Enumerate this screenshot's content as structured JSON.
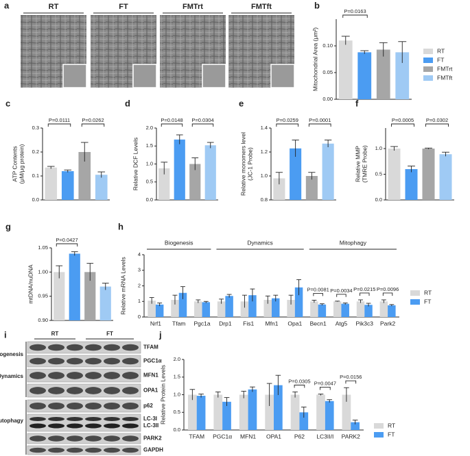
{
  "chart_data": [
    {
      "panel": "b",
      "type": "bar",
      "ylabel": [
        "Mitochondrial Area (μm²)"
      ],
      "ylim": [
        0,
        0.15
      ],
      "yticks": [
        {
          "value": 0,
          "label": "0.00"
        },
        0.05,
        {
          "value": 0.1,
          "label": "0.10"
        }
      ],
      "values": [
        0.11,
        0.088,
        0.093,
        0.088
      ],
      "errors": [
        0.008,
        0.003,
        0.013,
        0.02
      ],
      "colors": [
        "#d9d9d9",
        "#4b9cf2",
        "#a6a6a6",
        "#9fcaf4"
      ],
      "pvalues": [
        "P=0.0163",
        null
      ],
      "legend": [
        "RT",
        "FT",
        "FMTrt",
        "FMTft"
      ]
    },
    {
      "panel": "c",
      "type": "bar",
      "ylabel": [
        "ATP Contents",
        "(μM/μg protein)"
      ],
      "ylim": [
        0,
        0.3
      ],
      "yticks": [
        {
          "value": 0,
          "label": "0.0"
        },
        0.1,
        0.2,
        0.3
      ],
      "values": [
        0.135,
        0.12,
        0.2,
        0.105
      ],
      "errors": [
        0.005,
        0.005,
        0.04,
        0.012
      ],
      "colors": [
        "#d9d9d9",
        "#4b9cf2",
        "#a6a6a6",
        "#9fcaf4"
      ],
      "pvalues": [
        "P=0.0111",
        "P=0.0262"
      ]
    },
    {
      "panel": "d",
      "type": "bar",
      "ylabel": [
        "Relative DCF Levels"
      ],
      "ylim": [
        0,
        2
      ],
      "yticks": [
        {
          "value": 0,
          "label": "0.0"
        },
        0.5,
        {
          "value": 1,
          "label": "1.0"
        },
        1.5,
        {
          "value": 2,
          "label": "2.0"
        }
      ],
      "values": [
        0.88,
        1.68,
        1.0,
        1.52
      ],
      "errors": [
        0.17,
        0.13,
        0.17,
        0.08
      ],
      "colors": [
        "#d9d9d9",
        "#4b9cf2",
        "#a6a6a6",
        "#9fcaf4"
      ],
      "pvalues": [
        "P=0.0148",
        "P=0.0304"
      ]
    },
    {
      "panel": "e",
      "type": "bar",
      "ylabel": [
        "Relative monomers level",
        "(JC-1 Probe)"
      ],
      "ylim": [
        0.8,
        1.4
      ],
      "yticks": [
        0.8,
        {
          "value": 1,
          "label": "1.0"
        },
        1.2,
        1.4
      ],
      "values": [
        0.98,
        1.23,
        1.0,
        1.27
      ],
      "errors": [
        0.05,
        0.07,
        0.03,
        0.03
      ],
      "colors": [
        "#d9d9d9",
        "#4b9cf2",
        "#a6a6a6",
        "#9fcaf4"
      ],
      "pvalues": [
        "P=0.0259",
        "P=0.0001"
      ]
    },
    {
      "panel": "f",
      "type": "bar",
      "ylabel": [
        "Relative MMP",
        "(TMRE Probe)"
      ],
      "ylim": [
        0,
        1.4
      ],
      "yticks": [
        {
          "value": 0,
          "label": "0.0"
        },
        0.5,
        {
          "value": 1,
          "label": "1.0"
        }
      ],
      "values": [
        1.0,
        0.6,
        1.0,
        0.89
      ],
      "errors": [
        0.04,
        0.06,
        0.01,
        0.04
      ],
      "colors": [
        "#d9d9d9",
        "#4b9cf2",
        "#a6a6a6",
        "#9fcaf4"
      ],
      "pvalues": [
        "P=0.0005",
        "P=0.0302"
      ]
    },
    {
      "panel": "g",
      "type": "bar",
      "ylabel": [
        "mtDNA/nuDNA"
      ],
      "ylim": [
        0.9,
        1.05
      ],
      "yticks": [
        {
          "value": 0.9,
          "label": "0.90"
        },
        0.95,
        {
          "value": 1,
          "label": "1.00"
        },
        1.05
      ],
      "values": [
        1.0,
        1.038,
        1.0,
        0.97
      ],
      "errors": [
        0.013,
        0.004,
        0.018,
        0.007
      ],
      "colors": [
        "#d9d9d9",
        "#4b9cf2",
        "#a6a6a6",
        "#9fcaf4"
      ],
      "pvalues": [
        "P=0.0427",
        null
      ]
    },
    {
      "panel": "h",
      "type": "grouped",
      "ylabel": [
        "Relative mRNA Levels"
      ],
      "ylim": [
        0,
        4
      ],
      "yticks": [
        0,
        1,
        2,
        3,
        4
      ],
      "groups": [
        {
          "label": "Biogenesis",
          "categories": [
            "Nrf1",
            "Tfam",
            "Pgc1a"
          ]
        },
        {
          "label": "Dynamics",
          "categories": [
            "Drp1",
            "Fis1",
            "Mfn1",
            "Opa1"
          ]
        },
        {
          "label": "Mitophagy",
          "categories": [
            "Becn1",
            "Atg5",
            "Pik3c3",
            "Park2"
          ]
        }
      ],
      "series": [
        {
          "name": "RT",
          "color": "#d9d9d9",
          "values": [
            1.05,
            1.1,
            1.0,
            1.0,
            1.0,
            1.1,
            1.1,
            1.0,
            1.0,
            1.0,
            1.0
          ],
          "errors": [
            0.2,
            0.3,
            0.1,
            0.15,
            0.4,
            0.25,
            0.3,
            0.08,
            0.02,
            0.1,
            0.1
          ]
        },
        {
          "name": "FT",
          "color": "#4b9cf2",
          "values": [
            0.8,
            1.55,
            0.95,
            1.35,
            1.4,
            1.2,
            1.9,
            0.8,
            0.85,
            0.78,
            0.75
          ],
          "errors": [
            0.1,
            0.4,
            0.05,
            0.1,
            0.4,
            0.2,
            0.5,
            0.05,
            0.05,
            0.1,
            0.05
          ]
        }
      ],
      "pvalues": [
        null,
        null,
        null,
        null,
        null,
        null,
        null,
        "P=0.0081",
        "P=0.0034",
        "P=0.0215",
        "P=0.0096"
      ]
    },
    {
      "panel": "j",
      "type": "grouped",
      "ylabel": [
        "Relative Protein Levels"
      ],
      "ylim": [
        0,
        2
      ],
      "yticks": [
        {
          "value": 0,
          "label": "0.0"
        },
        0.5,
        {
          "value": 1,
          "label": "1.0"
        },
        1.5,
        {
          "value": 2,
          "label": "2.0"
        }
      ],
      "groups": [
        {
          "label": null,
          "categories": [
            "TFAM",
            "PGC1α",
            "MFN1",
            "OPA1",
            "P62",
            "LC3II/I",
            "PARK2"
          ]
        }
      ],
      "series": [
        {
          "name": "RT",
          "color": "#d9d9d9",
          "values": [
            1.0,
            1.0,
            1.0,
            1.0,
            1.0,
            1.0,
            1.0
          ],
          "errors": [
            0.15,
            0.08,
            0.1,
            0.32,
            0.08,
            0.02,
            0.2
          ]
        },
        {
          "name": "FT",
          "color": "#4b9cf2",
          "values": [
            0.97,
            0.8,
            1.15,
            1.27,
            0.5,
            0.82,
            0.22
          ],
          "errors": [
            0.05,
            0.12,
            0.07,
            0.28,
            0.15,
            0.04,
            0.06
          ]
        }
      ],
      "pvalues": [
        null,
        null,
        null,
        null,
        "P=0.0305",
        "P=0.0047",
        "P=0.0156"
      ]
    }
  ],
  "micrographs": {
    "panel": "a",
    "labels": [
      "RT",
      "FT",
      "FMTrt",
      "FMTft"
    ]
  },
  "blot": {
    "panel": "i",
    "groups": [
      "RT",
      "FT"
    ],
    "sections": [
      "Biogenesis",
      "Dynamics",
      "Autophagy"
    ],
    "bands": [
      "TFAM",
      "PGC1α",
      "MFN1",
      "OPA1",
      "p62",
      "LC-3I",
      "LC-3II",
      "PARK2",
      "GAPDH"
    ]
  }
}
